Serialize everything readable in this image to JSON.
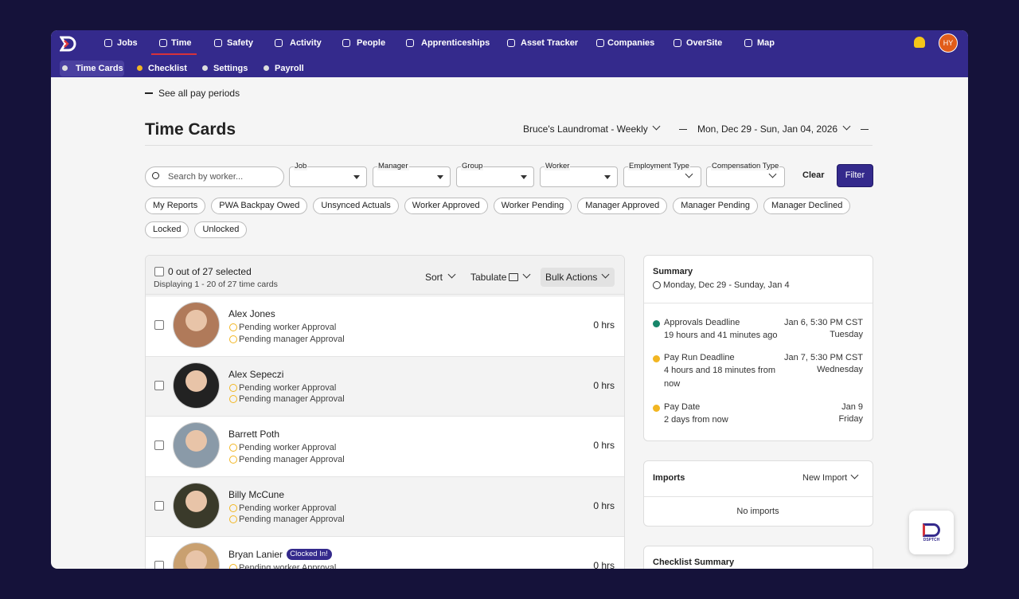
{
  "nav": {
    "items": [
      "Jobs",
      "Time",
      "Safety",
      "Activity",
      "People",
      "Apprenticeships",
      "Asset Tracker",
      "Companies",
      "OverSite",
      "Map"
    ],
    "avatar": "HY"
  },
  "subnav": [
    "Time Cards",
    "Checklist",
    "Settings",
    "Payroll"
  ],
  "back": "See all pay periods",
  "title": "Time Cards",
  "company": "Bruce's Laundromat - Weekly",
  "period": "Mon, Dec 29 - Sun, Jan 04, 2026",
  "search_placeholder": "Search by worker...",
  "filters": [
    "Job",
    "Manager",
    "Group",
    "Worker",
    "Employment Type",
    "Compensation Type"
  ],
  "buttons": {
    "clear": "Clear",
    "filter": "Filter"
  },
  "chips": [
    "My Reports",
    "PWA Backpay Owed",
    "Unsynced Actuals",
    "Worker Approved",
    "Worker Pending",
    "Manager Approved",
    "Manager Pending",
    "Manager Declined",
    "Locked",
    "Unlocked"
  ],
  "list": {
    "selected": "0 out of 27 selected",
    "displaying": "Displaying 1 - 20 of 27 time cards",
    "sort": "Sort",
    "tabulate": "Tabulate",
    "bulk": "Bulk Actions",
    "workers": [
      {
        "name": "Alex Jones",
        "statuses": [
          "Pending worker Approval",
          "Pending manager Approval"
        ],
        "hours": "0 hrs"
      },
      {
        "name": "Alex Sepeczi",
        "statuses": [
          "Pending worker Approval",
          "Pending manager Approval"
        ],
        "hours": "0 hrs"
      },
      {
        "name": "Barrett Poth",
        "statuses": [
          "Pending worker Approval",
          "Pending manager Approval"
        ],
        "hours": "0 hrs"
      },
      {
        "name": "Billy McCune",
        "statuses": [
          "Pending worker Approval",
          "Pending manager Approval"
        ],
        "hours": "0 hrs"
      },
      {
        "name": "Bryan Lanier",
        "badge": "Clocked In!",
        "statuses": [
          "Pending worker Approval"
        ],
        "hours": "0 hrs"
      }
    ]
  },
  "summary": {
    "title": "Summary",
    "range": "Monday, Dec 29 - Sunday, Jan 4",
    "items": [
      {
        "label": "Approvals Deadline",
        "detail": "19 hours and 41 minutes ago",
        "date": "Jan 6, 5:30 PM CST",
        "day": "Tuesday",
        "color": "#17866a"
      },
      {
        "label": "Pay Run Deadline",
        "detail": "4 hours and 18 minutes from now",
        "date": "Jan 7, 5:30 PM CST",
        "day": "Wednesday",
        "color": "#f2b622"
      },
      {
        "label": "Pay Date",
        "detail": "2 days from now",
        "date": "Jan 9",
        "day": "Friday",
        "color": "#f2b622"
      }
    ]
  },
  "imports": {
    "title": "Imports",
    "action": "New Import",
    "empty": "No imports"
  },
  "checklist": {
    "title": "Checklist Summary"
  },
  "badge_logo": "DSPTCH"
}
